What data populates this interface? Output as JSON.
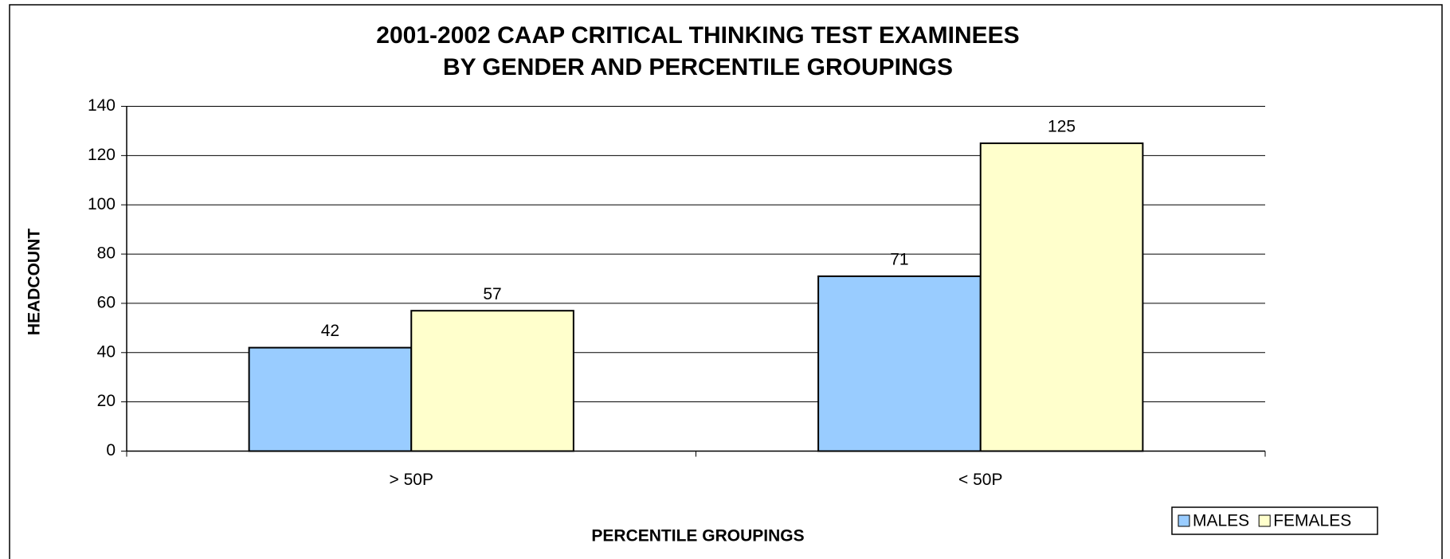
{
  "chart_data": {
    "type": "bar",
    "title": [
      "2001-2002 CAAP CRITICAL THINKING TEST EXAMINEES",
      "BY GENDER AND PERCENTILE GROUPINGS"
    ],
    "x_label": "PERCENTILE GROUPINGS",
    "y_label": "HEADCOUNT",
    "categories": [
      "> 50P",
      "< 50P"
    ],
    "series": [
      {
        "name": "MALES",
        "color": "#99ccff",
        "values": [
          42,
          71
        ]
      },
      {
        "name": "FEMALES",
        "color": "#ffffcc",
        "values": [
          57,
          125
        ]
      }
    ],
    "ylim": [
      0,
      140
    ],
    "yticks": [
      0,
      20,
      40,
      60,
      80,
      100,
      120,
      140
    ],
    "grid": true,
    "legend": "bottom-right"
  }
}
